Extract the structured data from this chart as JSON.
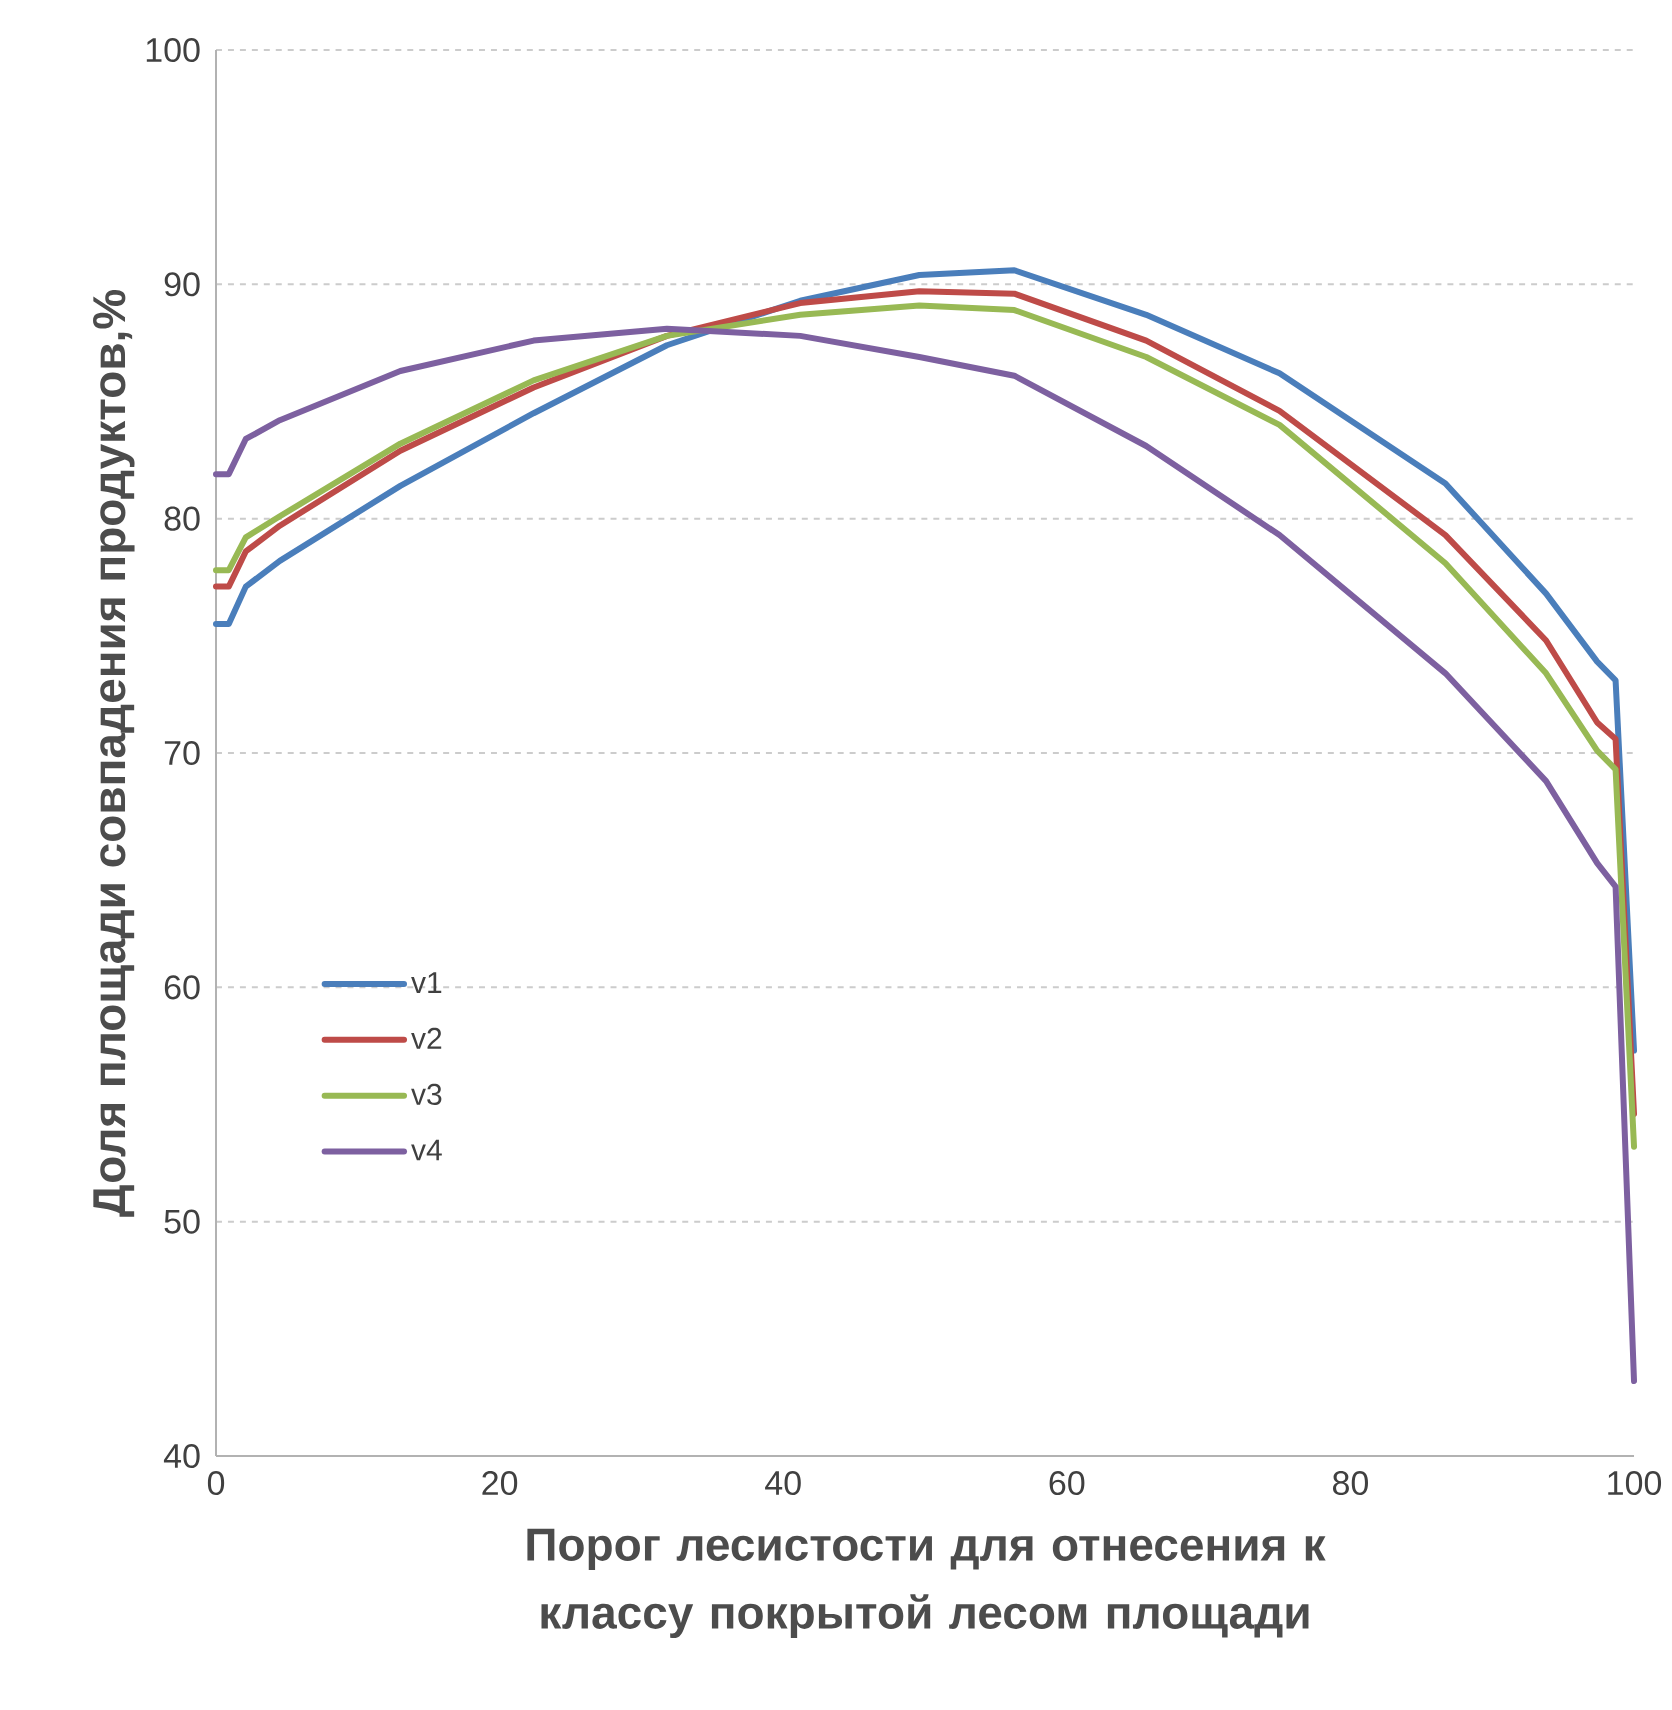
{
  "chart_data": {
    "type": "line",
    "xlabel": "Порог лесистости для отнесения к классу покрытой лесом площади",
    "ylabel": "Доля площади совпадения продуктов,%",
    "x": [
      0,
      0.9,
      2.1,
      4.5,
      13,
      22.4,
      31.8,
      41.2,
      49.6,
      56.3,
      65.6,
      75,
      86.7,
      93.8,
      97.4,
      98.7,
      100
    ],
    "series": [
      {
        "name": "v1",
        "color": "#4a7ebb",
        "values": [
          75.5,
          75.5,
          77.1,
          78.2,
          81.4,
          84.5,
          87.4,
          89.3,
          90.4,
          90.6,
          88.7,
          86.2,
          81.5,
          76.8,
          73.9,
          73.1,
          57.3
        ]
      },
      {
        "name": "v2",
        "color": "#be4b48",
        "values": [
          77.1,
          77.1,
          78.6,
          79.7,
          82.9,
          85.6,
          87.8,
          89.2,
          89.7,
          89.6,
          87.6,
          84.6,
          79.3,
          74.8,
          71.3,
          70.6,
          54.6
        ]
      },
      {
        "name": "v3",
        "color": "#98b954",
        "values": [
          77.8,
          77.8,
          79.2,
          80.1,
          83.2,
          85.9,
          87.8,
          88.7,
          89.1,
          88.9,
          86.9,
          84.0,
          78.1,
          73.4,
          70.1,
          69.3,
          53.2
        ]
      },
      {
        "name": "v4",
        "color": "#7d60a0",
        "values": [
          81.9,
          81.9,
          83.4,
          84.2,
          86.3,
          87.6,
          88.1,
          87.8,
          86.9,
          86.1,
          83.1,
          79.3,
          73.4,
          68.8,
          65.3,
          64.3,
          43.2
        ]
      }
    ],
    "xlim": [
      0,
      100
    ],
    "ylim": [
      40,
      100
    ],
    "xticks": [
      0,
      20,
      40,
      60,
      80,
      100
    ],
    "yticks": [
      40,
      50,
      60,
      70,
      80,
      90,
      100
    ],
    "grid": "y",
    "legend": "left",
    "marker": "none",
    "line_style": "solid"
  }
}
